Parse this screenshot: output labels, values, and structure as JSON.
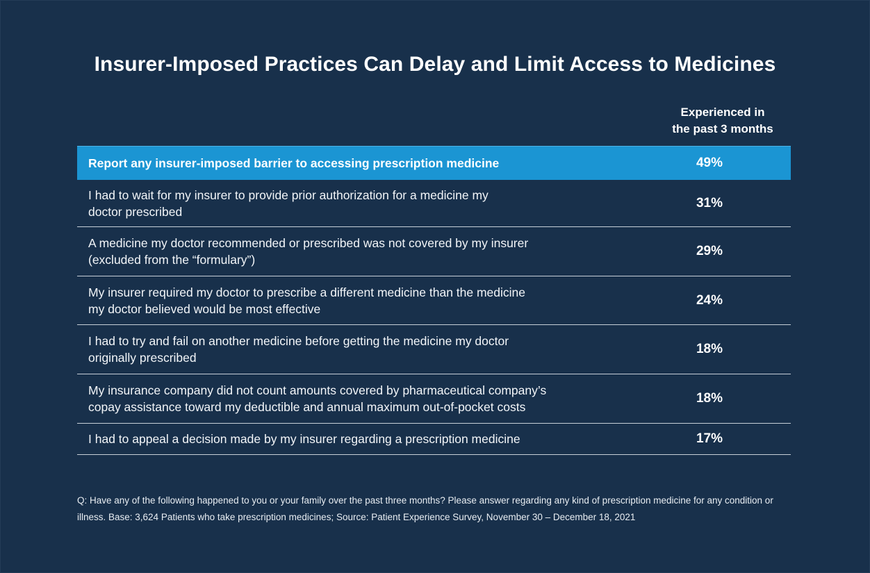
{
  "title": "Insurer-Imposed Practices Can Delay and Limit Access to Medicines",
  "column_header": "Experienced in\nthe past 3 months",
  "chart_data": {
    "type": "table",
    "title": "Insurer-Imposed Practices Can Delay and Limit Access to Medicines",
    "columns": [
      "",
      "Experienced in the past 3 months"
    ],
    "rows": [
      {
        "label": "Report any insurer-imposed barrier to accessing prescription medicine",
        "value": "49%",
        "highlight": true
      },
      {
        "label": "I had to wait for my insurer to provide prior authorization for a medicine my\ndoctor prescribed",
        "value": "31%"
      },
      {
        "label": "A medicine my doctor recommended or prescribed was not covered by my insurer\n(excluded from the “formulary”)",
        "value": "29%"
      },
      {
        "label": "My insurer required my doctor to prescribe a different medicine than the medicine\nmy doctor believed would be most effective",
        "value": "24%"
      },
      {
        "label": "I had to try and fail on another medicine before getting the medicine my doctor\noriginally prescribed",
        "value": "18%"
      },
      {
        "label": "My insurance company did not count amounts covered by pharmaceutical company’s\ncopay assistance toward my deductible and annual maximum out-of-pocket costs",
        "value": "18%"
      },
      {
        "label": "I had to appeal a decision made by my insurer regarding a prescription medicine",
        "value": "17%"
      }
    ]
  },
  "footnote": "Q: Have any of the following happened to you or your family over the past three months? Please answer regarding any kind of prescription medicine for any condition or illness. Base: 3,624 Patients who take prescription medicines; Source: Patient Experience Survey, November 30 – December 18, 2021",
  "colors": {
    "background": "#18304b",
    "highlight_row": "#1b95d3",
    "divider": "#c7cfd8"
  }
}
